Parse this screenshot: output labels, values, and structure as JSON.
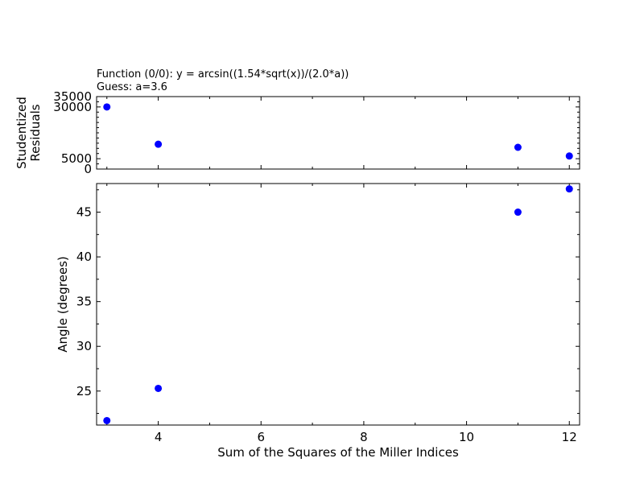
{
  "figure": {
    "title_line1": "Function (0/0): y =  arcsin((1.54*sqrt(x))/(2.0*a))",
    "title_line2": "Guess: a=3.6"
  },
  "chart_data": [
    {
      "type": "scatter",
      "title": "",
      "xlabel": "",
      "ylabel": "Studentized\nResiduals",
      "xlim": [
        2.8,
        12.2
      ],
      "ylim": [
        0,
        35000
      ],
      "yticks": [
        0,
        5000,
        30000,
        35000
      ],
      "xtick_labels": [],
      "grid": false,
      "color": "#0000ff",
      "series": [
        {
          "x": [
            3,
            4,
            11,
            12
          ],
          "y": [
            30000,
            12000,
            10500,
            6300
          ]
        }
      ]
    },
    {
      "type": "scatter",
      "title": "",
      "xlabel": "Sum of the Squares of the Miller Indices",
      "ylabel": "Angle (degrees)",
      "xlim": [
        2.8,
        12.2
      ],
      "ylim": [
        21.2,
        48.2
      ],
      "xticks": [
        4,
        6,
        8,
        10,
        12
      ],
      "yticks": [
        25,
        30,
        35,
        40,
        45
      ],
      "grid": false,
      "color": "#0000ff",
      "series": [
        {
          "x": [
            3,
            4,
            11,
            12
          ],
          "y": [
            21.7,
            25.3,
            45.0,
            47.6
          ]
        }
      ]
    }
  ]
}
